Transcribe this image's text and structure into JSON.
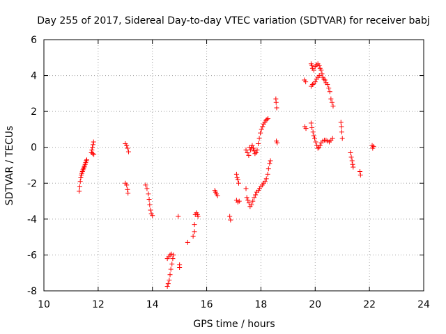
{
  "chart_data": {
    "type": "scatter",
    "title": "Day 255 of 2017, Sidereal Day-to-day VTEC variation (SDTVAR) for receiver babj",
    "xlabel": "GPS time / hours",
    "ylabel": "SDTVAR / TECUs",
    "xlim": [
      10,
      24
    ],
    "ylim": [
      -8,
      6
    ],
    "xticks": [
      "10",
      "12",
      "14",
      "16",
      "18",
      "20",
      "22",
      "24"
    ],
    "yticks": [
      "-8",
      "-6",
      "-4",
      "-2",
      "0",
      "2",
      "4",
      "6"
    ],
    "grid": true,
    "marker": "plus",
    "color": "#ff0000",
    "series": [
      {
        "name": "SDTVAR",
        "points": [
          [
            11.3,
            -2.45
          ],
          [
            11.32,
            -2.2
          ],
          [
            11.34,
            -1.9
          ],
          [
            11.36,
            -1.7
          ],
          [
            11.38,
            -1.55
          ],
          [
            11.4,
            -1.45
          ],
          [
            11.42,
            -1.35
          ],
          [
            11.44,
            -1.25
          ],
          [
            11.46,
            -1.2
          ],
          [
            11.48,
            -1.1
          ],
          [
            11.5,
            -1.05
          ],
          [
            11.52,
            -0.95
          ],
          [
            11.54,
            -0.85
          ],
          [
            11.56,
            -0.75
          ],
          [
            11.58,
            -0.7
          ],
          [
            11.75,
            -0.3
          ],
          [
            11.77,
            -0.15
          ],
          [
            11.79,
            0.0
          ],
          [
            11.81,
            0.15
          ],
          [
            11.83,
            0.3
          ],
          [
            11.8,
            -0.35
          ],
          [
            11.84,
            -0.4
          ],
          [
            13.0,
            0.2
          ],
          [
            13.05,
            0.1
          ],
          [
            13.08,
            -0.05
          ],
          [
            13.12,
            -0.25
          ],
          [
            13.0,
            -2.0
          ],
          [
            13.05,
            -2.1
          ],
          [
            13.08,
            -2.35
          ],
          [
            13.1,
            -2.55
          ],
          [
            13.75,
            -2.1
          ],
          [
            13.8,
            -2.3
          ],
          [
            13.85,
            -2.6
          ],
          [
            13.88,
            -2.9
          ],
          [
            13.9,
            -3.2
          ],
          [
            13.93,
            -3.5
          ],
          [
            13.96,
            -3.7
          ],
          [
            14.0,
            -3.8
          ],
          [
            14.55,
            -7.75
          ],
          [
            14.58,
            -7.6
          ],
          [
            14.62,
            -7.4
          ],
          [
            14.65,
            -7.1
          ],
          [
            14.68,
            -6.8
          ],
          [
            14.72,
            -6.5
          ],
          [
            14.75,
            -6.2
          ],
          [
            14.78,
            -6.0
          ],
          [
            14.55,
            -6.2
          ],
          [
            14.6,
            -6.1
          ],
          [
            14.65,
            -6.0
          ],
          [
            14.7,
            -5.95
          ],
          [
            14.95,
            -3.85
          ],
          [
            15.0,
            -6.55
          ],
          [
            15.0,
            -6.7
          ],
          [
            15.3,
            -5.3
          ],
          [
            15.5,
            -4.95
          ],
          [
            15.55,
            -4.7
          ],
          [
            15.55,
            -4.3
          ],
          [
            15.58,
            -3.75
          ],
          [
            15.62,
            -3.65
          ],
          [
            15.66,
            -3.75
          ],
          [
            15.68,
            -3.85
          ],
          [
            16.3,
            -2.4
          ],
          [
            16.33,
            -2.5
          ],
          [
            16.36,
            -2.6
          ],
          [
            16.4,
            -2.7
          ],
          [
            16.85,
            -3.85
          ],
          [
            16.88,
            -4.05
          ],
          [
            17.1,
            -1.5
          ],
          [
            17.12,
            -1.7
          ],
          [
            17.15,
            -1.8
          ],
          [
            17.18,
            -2.0
          ],
          [
            17.1,
            -2.95
          ],
          [
            17.15,
            -3.05
          ],
          [
            17.2,
            -3.0
          ],
          [
            17.45,
            -2.3
          ],
          [
            17.48,
            -2.8
          ],
          [
            17.52,
            -2.95
          ],
          [
            17.56,
            -3.1
          ],
          [
            17.6,
            -3.3
          ],
          [
            17.65,
            -3.2
          ],
          [
            17.7,
            -3.0
          ],
          [
            17.75,
            -2.8
          ],
          [
            17.8,
            -2.65
          ],
          [
            17.85,
            -2.5
          ],
          [
            17.9,
            -2.4
          ],
          [
            17.95,
            -2.3
          ],
          [
            18.0,
            -2.2
          ],
          [
            18.05,
            -2.1
          ],
          [
            18.1,
            -2.0
          ],
          [
            18.15,
            -1.9
          ],
          [
            18.2,
            -1.75
          ],
          [
            18.25,
            -1.5
          ],
          [
            18.28,
            -1.2
          ],
          [
            18.32,
            -0.9
          ],
          [
            18.35,
            -0.75
          ],
          [
            17.45,
            -0.15
          ],
          [
            17.5,
            -0.3
          ],
          [
            17.55,
            -0.45
          ],
          [
            17.58,
            0.0
          ],
          [
            17.62,
            -0.15
          ],
          [
            17.65,
            0.0
          ],
          [
            17.68,
            0.1
          ],
          [
            17.72,
            -0.05
          ],
          [
            17.75,
            -0.2
          ],
          [
            17.78,
            -0.35
          ],
          [
            17.82,
            -0.3
          ],
          [
            17.86,
            -0.15
          ],
          [
            17.9,
            0.2
          ],
          [
            17.94,
            0.5
          ],
          [
            17.98,
            0.8
          ],
          [
            18.02,
            1.0
          ],
          [
            18.06,
            1.15
          ],
          [
            18.1,
            1.3
          ],
          [
            18.14,
            1.4
          ],
          [
            18.18,
            1.5
          ],
          [
            18.22,
            1.55
          ],
          [
            18.26,
            1.6
          ],
          [
            18.55,
            2.7
          ],
          [
            18.56,
            2.5
          ],
          [
            18.58,
            2.2
          ],
          [
            18.57,
            0.35
          ],
          [
            18.6,
            0.25
          ],
          [
            19.6,
            3.75
          ],
          [
            19.65,
            3.65
          ],
          [
            19.62,
            1.15
          ],
          [
            19.66,
            1.05
          ],
          [
            19.85,
            4.65
          ],
          [
            19.88,
            4.55
          ],
          [
            19.9,
            4.4
          ],
          [
            19.95,
            4.3
          ],
          [
            20.0,
            4.5
          ],
          [
            20.05,
            4.6
          ],
          [
            20.1,
            4.65
          ],
          [
            20.15,
            4.55
          ],
          [
            20.18,
            4.4
          ],
          [
            20.22,
            4.3
          ],
          [
            20.25,
            4.1
          ],
          [
            20.28,
            3.9
          ],
          [
            20.32,
            3.8
          ],
          [
            20.36,
            3.75
          ],
          [
            20.4,
            3.6
          ],
          [
            20.45,
            3.5
          ],
          [
            20.5,
            3.3
          ],
          [
            20.54,
            3.1
          ],
          [
            20.58,
            2.7
          ],
          [
            20.62,
            2.5
          ],
          [
            20.66,
            2.3
          ],
          [
            19.85,
            3.4
          ],
          [
            19.9,
            3.5
          ],
          [
            19.95,
            3.55
          ],
          [
            20.0,
            3.65
          ],
          [
            20.05,
            3.8
          ],
          [
            20.1,
            3.9
          ],
          [
            20.15,
            4.0
          ],
          [
            19.85,
            1.35
          ],
          [
            19.88,
            1.1
          ],
          [
            19.92,
            0.85
          ],
          [
            19.95,
            0.65
          ],
          [
            19.98,
            0.5
          ],
          [
            20.02,
            0.3
          ],
          [
            20.06,
            0.1
          ],
          [
            20.1,
            -0.05
          ],
          [
            20.14,
            0.0
          ],
          [
            20.18,
            0.1
          ],
          [
            20.22,
            0.25
          ],
          [
            20.28,
            0.35
          ],
          [
            20.34,
            0.4
          ],
          [
            20.4,
            0.4
          ],
          [
            20.46,
            0.35
          ],
          [
            20.52,
            0.3
          ],
          [
            20.58,
            0.4
          ],
          [
            20.64,
            0.5
          ],
          [
            20.95,
            1.4
          ],
          [
            20.97,
            1.15
          ],
          [
            20.98,
            0.85
          ],
          [
            21.0,
            0.5
          ],
          [
            21.3,
            -0.3
          ],
          [
            21.33,
            -0.55
          ],
          [
            21.36,
            -0.75
          ],
          [
            21.38,
            -0.95
          ],
          [
            21.4,
            -1.1
          ],
          [
            21.65,
            -1.35
          ],
          [
            21.67,
            -1.55
          ],
          [
            22.1,
            0.1
          ],
          [
            22.12,
            -0.05
          ],
          [
            22.15,
            0.05
          ]
        ]
      }
    ]
  }
}
